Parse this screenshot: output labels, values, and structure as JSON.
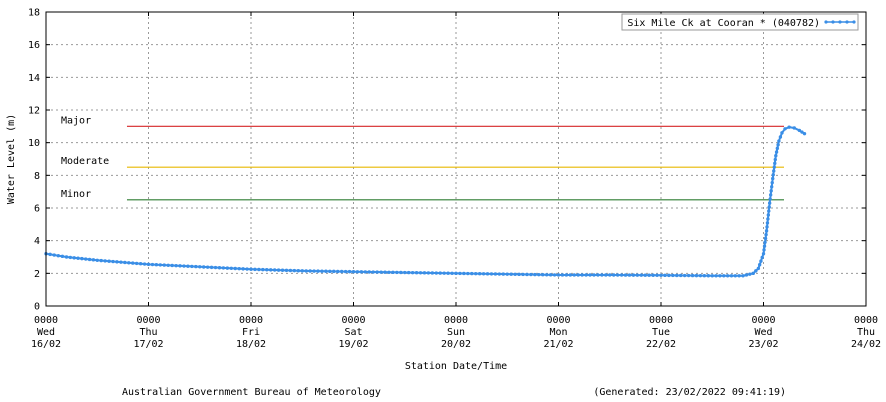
{
  "chart_data": {
    "type": "line",
    "title": "",
    "xlabel": "Station Date/Time",
    "ylabel": "Water Level (m)",
    "ylim": [
      0,
      18
    ],
    "yticks": [
      0,
      2,
      4,
      6,
      8,
      10,
      12,
      14,
      16,
      18
    ],
    "x_unit": "days from 0000 Wed 16/02",
    "xlim": [
      0,
      8
    ],
    "x_tick_labels": [
      {
        "time": "0000",
        "day": "Wed",
        "date": "16/02"
      },
      {
        "time": "0000",
        "day": "Thu",
        "date": "17/02"
      },
      {
        "time": "0000",
        "day": "Fri",
        "date": "18/02"
      },
      {
        "time": "0000",
        "day": "Sat",
        "date": "19/02"
      },
      {
        "time": "0000",
        "day": "Sun",
        "date": "20/02"
      },
      {
        "time": "0000",
        "day": "Mon",
        "date": "21/02"
      },
      {
        "time": "0000",
        "day": "Tue",
        "date": "22/02"
      },
      {
        "time": "0000",
        "day": "Wed",
        "date": "23/02"
      },
      {
        "time": "0000",
        "day": "Thu",
        "date": "24/02"
      }
    ],
    "grid": true,
    "legend_position": "top-right",
    "thresholds": [
      {
        "label": "Major",
        "value": 11.0,
        "color": "#d62728",
        "x_start": 0.79,
        "x_end": 7.2
      },
      {
        "label": "Moderate",
        "value": 8.5,
        "color": "#e8b800",
        "x_start": 0.79,
        "x_end": 7.2
      },
      {
        "label": "Minor",
        "value": 6.5,
        "color": "#2e7d32",
        "x_start": 0.79,
        "x_end": 7.2
      }
    ],
    "series": [
      {
        "name": "Six Mile Ck at Cooran * (040782)",
        "color": "#3a8ee6",
        "x": [
          0,
          0.2,
          0.5,
          1.0,
          1.5,
          2.0,
          2.5,
          3.0,
          3.5,
          4.0,
          4.5,
          5.0,
          5.5,
          6.0,
          6.5,
          6.8,
          6.9,
          6.95,
          7.0,
          7.03,
          7.06,
          7.09,
          7.12,
          7.15,
          7.18,
          7.21,
          7.25,
          7.3,
          7.35,
          7.4
        ],
        "y": [
          3.2,
          3.0,
          2.8,
          2.55,
          2.4,
          2.25,
          2.15,
          2.1,
          2.05,
          2.0,
          1.95,
          1.9,
          1.9,
          1.88,
          1.85,
          1.85,
          2.0,
          2.3,
          3.2,
          4.6,
          6.3,
          7.8,
          9.2,
          10.1,
          10.6,
          10.85,
          10.95,
          10.9,
          10.75,
          10.55
        ]
      }
    ]
  },
  "footer": {
    "agency": "Australian Government Bureau of Meteorology",
    "generated": "(Generated: 23/02/2022 09:41:19)"
  }
}
